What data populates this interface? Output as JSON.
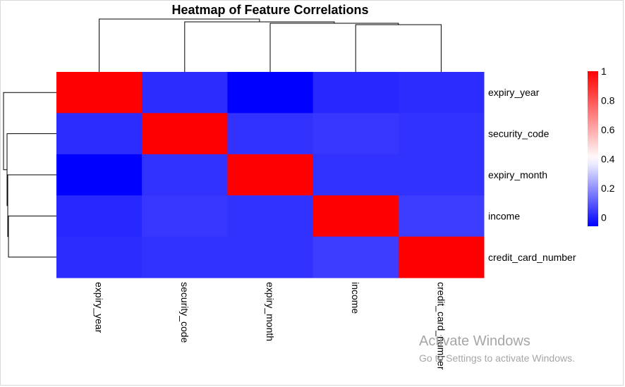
{
  "chart_data": {
    "type": "heatmap",
    "title": "Heatmap of Feature Correlations",
    "columns": [
      "expiry_year",
      "security_code",
      "expiry_month",
      "income",
      "credit_card_number"
    ],
    "rows": [
      "expiry_year",
      "security_code",
      "expiry_month",
      "income",
      "credit_card_number"
    ],
    "values": [
      [
        1.0,
        0.02,
        -0.06,
        0.01,
        0.02
      ],
      [
        0.02,
        1.0,
        0.03,
        0.04,
        0.03
      ],
      [
        -0.06,
        0.03,
        1.0,
        0.03,
        0.03
      ],
      [
        0.01,
        0.04,
        0.03,
        1.0,
        0.05
      ],
      [
        0.02,
        0.03,
        0.03,
        0.05,
        1.0
      ]
    ],
    "color_scale": {
      "min": -0.06,
      "max": 1.0,
      "low_color": "#0000ff",
      "mid_color": "#ffffff",
      "high_color": "#ff0000",
      "midpoint": 0.4
    },
    "legend": {
      "placement": "right",
      "ticks": [
        1,
        0.8,
        0.6,
        0.4,
        0.2,
        0
      ],
      "tick_labels": [
        "1",
        "0.8",
        "0.6",
        "0.4",
        "0.2",
        "0"
      ]
    },
    "dendrograms": [
      "top",
      "left"
    ]
  },
  "watermark": {
    "title": "Activate Windows",
    "subtitle": "Go to Settings to activate Windows."
  }
}
